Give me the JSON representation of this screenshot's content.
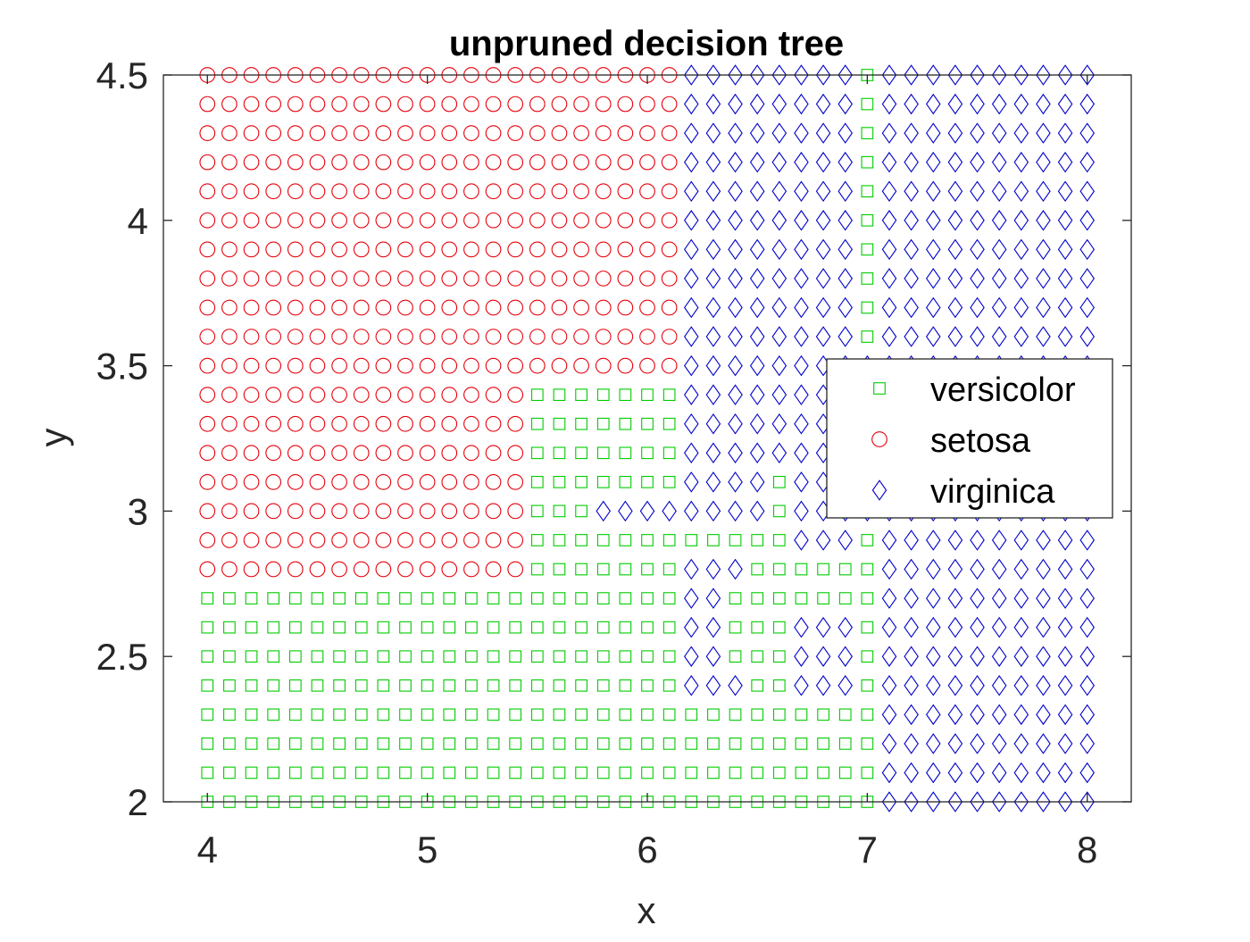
{
  "chart_data": {
    "type": "scatter",
    "title": "unpruned decision tree",
    "xlabel": "x",
    "ylabel": "y",
    "xlim": [
      3.8,
      8.2
    ],
    "ylim": [
      2,
      4.5
    ],
    "x_ticks": [
      "4",
      "5",
      "6",
      "7",
      "8"
    ],
    "x_tick_values": [
      4,
      5,
      6,
      7,
      8
    ],
    "y_ticks": [
      "2",
      "2.5",
      "3",
      "3.5",
      "4",
      "4.5"
    ],
    "y_tick_values": [
      2,
      2.5,
      3,
      3.5,
      4,
      4.5
    ],
    "grid": false,
    "legend_position": "right",
    "grid_x": {
      "start": 4,
      "stop": 8,
      "step": 0.1
    },
    "grid_y": {
      "start": 2,
      "stop": 4.5,
      "step": 0.1
    },
    "series": [
      {
        "name": "versicolor",
        "marker": "square",
        "color": "#00cc00"
      },
      {
        "name": "setosa",
        "marker": "circle",
        "color": "#e8000b"
      },
      {
        "name": "virginica",
        "marker": "diamond",
        "color": "#0000cc"
      }
    ],
    "region_rows_note": "",
    "rows": [
      {
        "y": 4.5,
        "spans": [
          [
            "setosa",
            4.0,
            6.1
          ],
          [
            "virginica",
            6.2,
            6.9
          ],
          [
            "versicolor",
            7.0,
            7.0
          ],
          [
            "virginica",
            7.1,
            8.0
          ]
        ]
      },
      {
        "y": 4.4,
        "spans": [
          [
            "setosa",
            4.0,
            6.1
          ],
          [
            "virginica",
            6.2,
            6.9
          ],
          [
            "versicolor",
            7.0,
            7.0
          ],
          [
            "virginica",
            7.1,
            8.0
          ]
        ]
      },
      {
        "y": 4.3,
        "spans": [
          [
            "setosa",
            4.0,
            6.1
          ],
          [
            "virginica",
            6.2,
            6.9
          ],
          [
            "versicolor",
            7.0,
            7.0
          ],
          [
            "virginica",
            7.1,
            8.0
          ]
        ]
      },
      {
        "y": 4.2,
        "spans": [
          [
            "setosa",
            4.0,
            6.1
          ],
          [
            "virginica",
            6.2,
            6.9
          ],
          [
            "versicolor",
            7.0,
            7.0
          ],
          [
            "virginica",
            7.1,
            8.0
          ]
        ]
      },
      {
        "y": 4.1,
        "spans": [
          [
            "setosa",
            4.0,
            6.1
          ],
          [
            "virginica",
            6.2,
            6.9
          ],
          [
            "versicolor",
            7.0,
            7.0
          ],
          [
            "virginica",
            7.1,
            8.0
          ]
        ]
      },
      {
        "y": 4.0,
        "spans": [
          [
            "setosa",
            4.0,
            6.1
          ],
          [
            "virginica",
            6.2,
            6.9
          ],
          [
            "versicolor",
            7.0,
            7.0
          ],
          [
            "virginica",
            7.1,
            8.0
          ]
        ]
      },
      {
        "y": 3.9,
        "spans": [
          [
            "setosa",
            4.0,
            6.1
          ],
          [
            "virginica",
            6.2,
            6.9
          ],
          [
            "versicolor",
            7.0,
            7.0
          ],
          [
            "virginica",
            7.1,
            8.0
          ]
        ]
      },
      {
        "y": 3.8,
        "spans": [
          [
            "setosa",
            4.0,
            6.1
          ],
          [
            "virginica",
            6.2,
            6.9
          ],
          [
            "versicolor",
            7.0,
            7.0
          ],
          [
            "virginica",
            7.1,
            8.0
          ]
        ]
      },
      {
        "y": 3.7,
        "spans": [
          [
            "setosa",
            4.0,
            6.1
          ],
          [
            "virginica",
            6.2,
            6.9
          ],
          [
            "versicolor",
            7.0,
            7.0
          ],
          [
            "virginica",
            7.1,
            8.0
          ]
        ]
      },
      {
        "y": 3.6,
        "spans": [
          [
            "setosa",
            4.0,
            6.1
          ],
          [
            "virginica",
            6.2,
            6.9
          ],
          [
            "versicolor",
            7.0,
            7.0
          ],
          [
            "virginica",
            7.1,
            8.0
          ]
        ]
      },
      {
        "y": 3.5,
        "spans": [
          [
            "setosa",
            4.0,
            6.1
          ],
          [
            "virginica",
            6.2,
            8.0
          ]
        ]
      },
      {
        "y": 3.4,
        "spans": [
          [
            "setosa",
            4.0,
            5.4
          ],
          [
            "versicolor",
            5.5,
            6.1
          ],
          [
            "virginica",
            6.2,
            8.0
          ]
        ]
      },
      {
        "y": 3.3,
        "spans": [
          [
            "setosa",
            4.0,
            5.4
          ],
          [
            "versicolor",
            5.5,
            6.1
          ],
          [
            "virginica",
            6.2,
            8.0
          ]
        ]
      },
      {
        "y": 3.2,
        "spans": [
          [
            "setosa",
            4.0,
            5.4
          ],
          [
            "versicolor",
            5.5,
            6.1
          ],
          [
            "virginica",
            6.2,
            8.0
          ]
        ]
      },
      {
        "y": 3.1,
        "spans": [
          [
            "setosa",
            4.0,
            5.4
          ],
          [
            "versicolor",
            5.5,
            6.1
          ],
          [
            "virginica",
            6.2,
            6.5
          ],
          [
            "versicolor",
            6.6,
            6.6
          ],
          [
            "virginica",
            6.7,
            8.0
          ]
        ]
      },
      {
        "y": 3.0,
        "spans": [
          [
            "setosa",
            4.0,
            5.4
          ],
          [
            "versicolor",
            5.5,
            5.7
          ],
          [
            "virginica",
            5.8,
            6.5
          ],
          [
            "versicolor",
            6.6,
            6.6
          ],
          [
            "virginica",
            6.7,
            8.0
          ]
        ]
      },
      {
        "y": 2.9,
        "spans": [
          [
            "setosa",
            4.0,
            5.4
          ],
          [
            "versicolor",
            5.5,
            6.6
          ],
          [
            "virginica",
            6.7,
            6.9
          ],
          [
            "versicolor",
            7.0,
            7.0
          ],
          [
            "virginica",
            7.1,
            8.0
          ]
        ]
      },
      {
        "y": 2.8,
        "spans": [
          [
            "setosa",
            4.0,
            5.4
          ],
          [
            "versicolor",
            5.5,
            6.1
          ],
          [
            "virginica",
            6.2,
            6.4
          ],
          [
            "versicolor",
            6.5,
            7.0
          ],
          [
            "virginica",
            7.1,
            8.0
          ]
        ]
      },
      {
        "y": 2.7,
        "spans": [
          [
            "versicolor",
            4.0,
            6.1
          ],
          [
            "virginica",
            6.2,
            6.3
          ],
          [
            "versicolor",
            6.4,
            7.0
          ],
          [
            "virginica",
            7.1,
            8.0
          ]
        ]
      },
      {
        "y": 2.6,
        "spans": [
          [
            "versicolor",
            4.0,
            6.1
          ],
          [
            "virginica",
            6.2,
            6.3
          ],
          [
            "versicolor",
            6.4,
            6.6
          ],
          [
            "virginica",
            6.7,
            6.9
          ],
          [
            "versicolor",
            7.0,
            7.0
          ],
          [
            "virginica",
            7.1,
            8.0
          ]
        ]
      },
      {
        "y": 2.5,
        "spans": [
          [
            "versicolor",
            4.0,
            6.1
          ],
          [
            "virginica",
            6.2,
            6.3
          ],
          [
            "versicolor",
            6.4,
            6.6
          ],
          [
            "virginica",
            6.7,
            6.9
          ],
          [
            "versicolor",
            7.0,
            7.0
          ],
          [
            "virginica",
            7.1,
            8.0
          ]
        ]
      },
      {
        "y": 2.4,
        "spans": [
          [
            "versicolor",
            4.0,
            6.1
          ],
          [
            "virginica",
            6.2,
            6.4
          ],
          [
            "versicolor",
            6.5,
            6.6
          ],
          [
            "virginica",
            6.7,
            6.9
          ],
          [
            "versicolor",
            7.0,
            7.0
          ],
          [
            "virginica",
            7.1,
            8.0
          ]
        ]
      },
      {
        "y": 2.3,
        "spans": [
          [
            "versicolor",
            4.0,
            7.0
          ],
          [
            "virginica",
            7.1,
            8.0
          ]
        ]
      },
      {
        "y": 2.2,
        "spans": [
          [
            "versicolor",
            4.0,
            7.0
          ],
          [
            "virginica",
            7.1,
            8.0
          ]
        ]
      },
      {
        "y": 2.1,
        "spans": [
          [
            "versicolor",
            4.0,
            7.0
          ],
          [
            "virginica",
            7.1,
            8.0
          ]
        ]
      },
      {
        "y": 2.0,
        "spans": [
          [
            "versicolor",
            4.0,
            7.0
          ],
          [
            "virginica",
            7.1,
            8.0
          ]
        ]
      }
    ]
  }
}
